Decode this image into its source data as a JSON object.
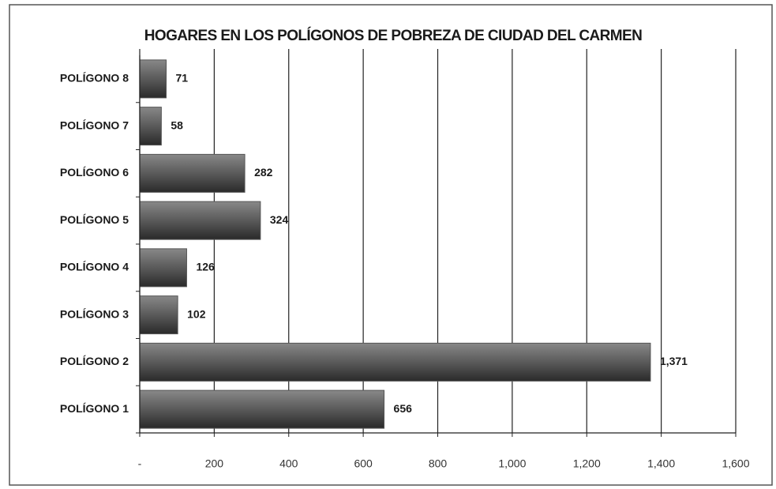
{
  "chart_data": {
    "type": "hbar",
    "title": "HOGARES EN LOS POLÍGONOS DE POBREZA DE CIUDAD DEL CARMEN",
    "categories": [
      "POLÍGONO 1",
      "POLÍGONO 2",
      "POLÍGONO 3",
      "POLÍGONO 4",
      "POLÍGONO 5",
      "POLÍGONO 6",
      "POLÍGONO 7",
      "POLÍGONO 8"
    ],
    "values": [
      656,
      1371,
      102,
      126,
      324,
      282,
      58,
      71
    ],
    "value_labels": [
      "656",
      "1,371",
      "102",
      "126",
      "324",
      "282",
      "58",
      "71"
    ],
    "color": "#555555",
    "xlim": [
      0,
      1600
    ],
    "xticks": [
      {
        "value": 0,
        "label": "-"
      },
      200,
      400,
      600,
      800,
      {
        "value": 1000,
        "label": "1,000"
      },
      {
        "value": 1200,
        "label": "1,200"
      },
      {
        "value": 1400,
        "label": "1,400"
      },
      {
        "value": 1600,
        "label": "1,600"
      }
    ],
    "grid": true
  }
}
